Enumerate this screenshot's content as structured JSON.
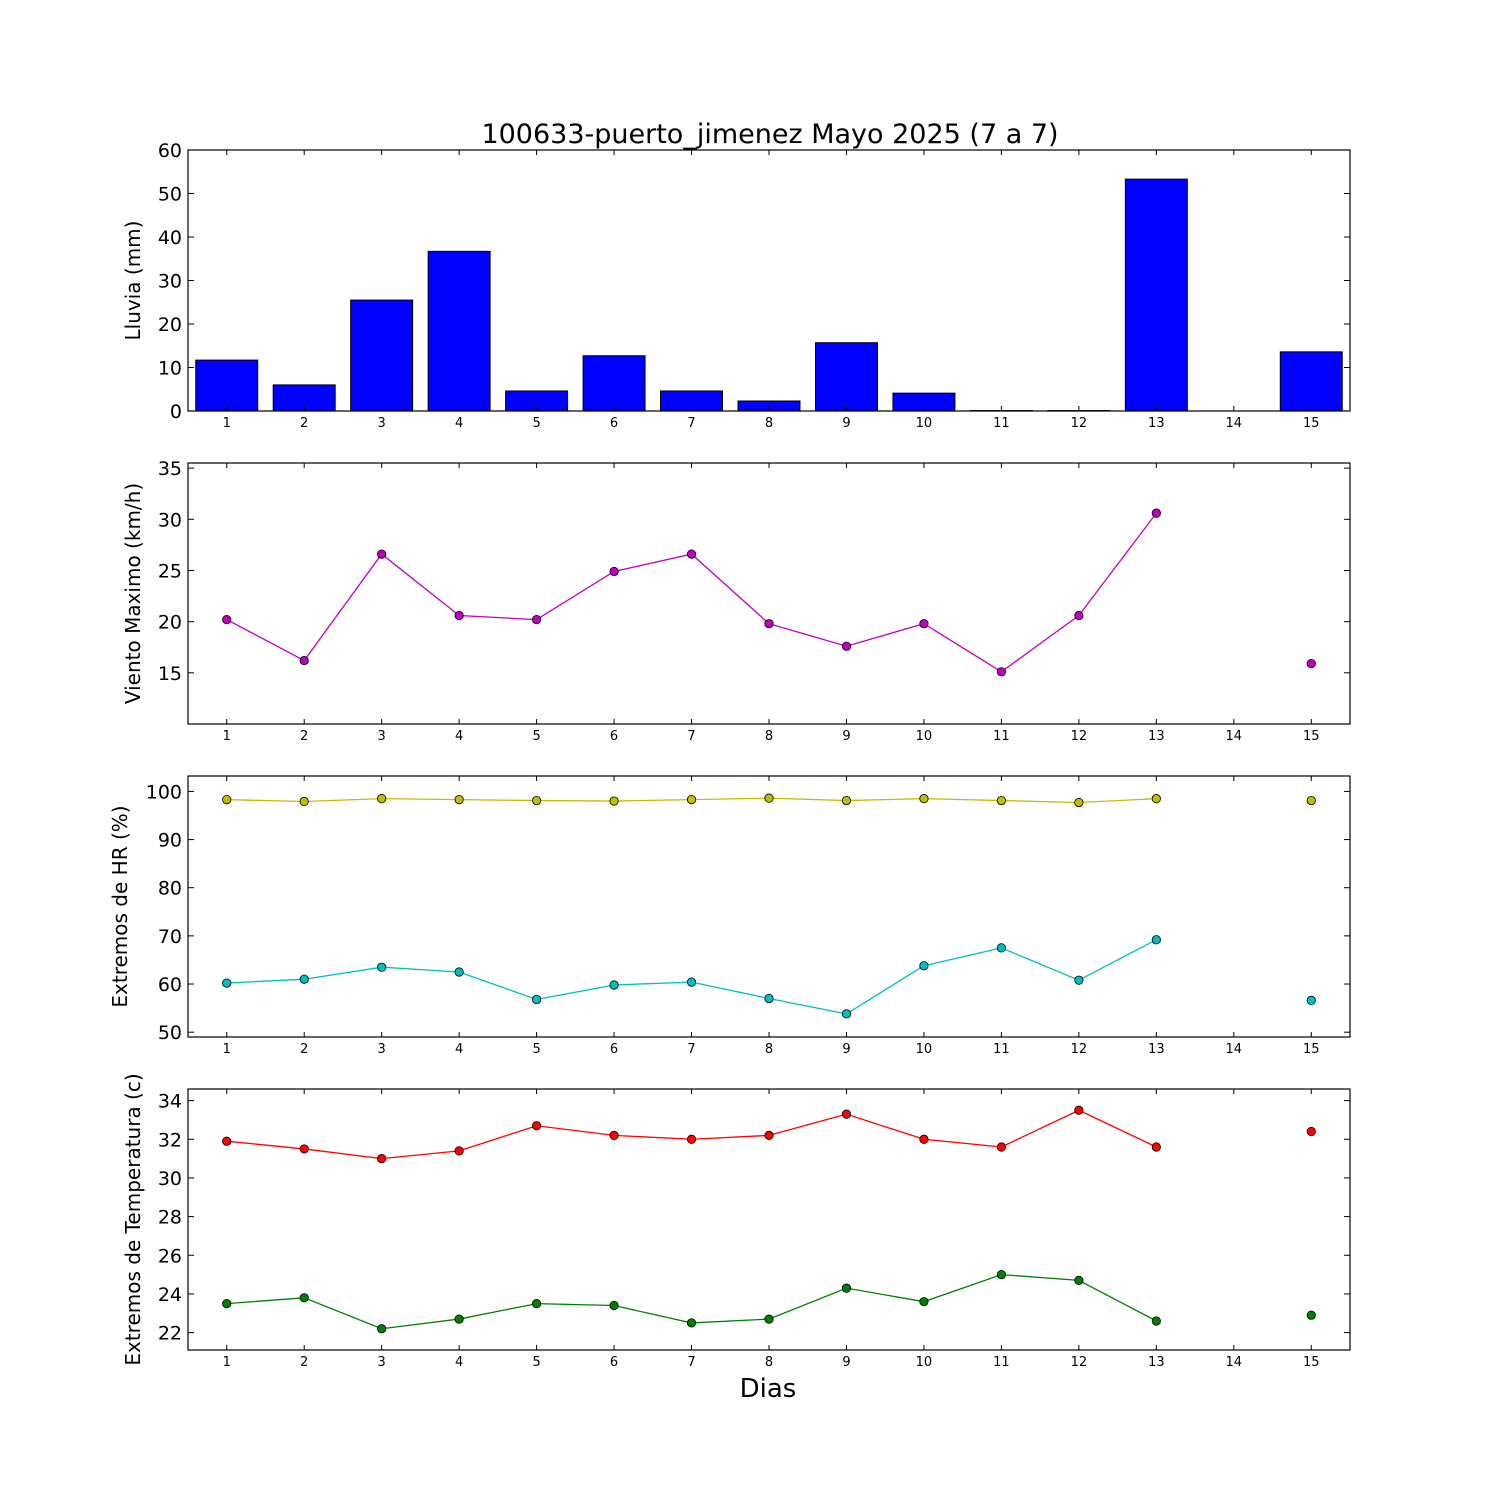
{
  "figure": {
    "title": "100633-puerto_jimenez Mayo 2025  (7 a 7)",
    "xlabel": "Dias"
  },
  "colors": {
    "rain": "#0000ff",
    "wind": "#bf00bf",
    "hr_max": "#bfbf00",
    "hr_min": "#00bfbf",
    "temp_max": "#ff0000",
    "temp_min": "#008000"
  },
  "chart_data": [
    {
      "id": "rain",
      "type": "bar",
      "ylabel": "Lluvia (mm)",
      "x": [
        1,
        2,
        3,
        4,
        5,
        6,
        7,
        8,
        9,
        10,
        11,
        12,
        13,
        14,
        15
      ],
      "xticks": [
        "1",
        "2",
        "3",
        "4",
        "5",
        "6",
        "7",
        "8",
        "9",
        "10",
        "11",
        "12",
        "13",
        "14",
        "15"
      ],
      "xlim": [
        0.5,
        15.5
      ],
      "ylim": [
        0,
        60
      ],
      "yticks": [
        0,
        10,
        20,
        30,
        40,
        50,
        60
      ],
      "series": [
        {
          "color": "#0000ff",
          "values": [
            11.7,
            6.0,
            25.5,
            36.7,
            4.6,
            12.7,
            4.6,
            2.3,
            15.7,
            4.1,
            0.1,
            0.1,
            53.3,
            null,
            13.6
          ]
        }
      ]
    },
    {
      "id": "wind",
      "type": "line",
      "ylabel": "Viento Maximo (km/h)",
      "x": [
        1,
        2,
        3,
        4,
        5,
        6,
        7,
        8,
        9,
        10,
        11,
        12,
        13,
        14,
        15
      ],
      "xticks": [
        "1",
        "2",
        "3",
        "4",
        "5",
        "6",
        "7",
        "8",
        "9",
        "10",
        "11",
        "12",
        "13",
        "14",
        "15"
      ],
      "xlim": [
        0.5,
        15.5
      ],
      "ylim": [
        10,
        35.5
      ],
      "yticks": [
        15,
        20,
        25,
        30,
        35
      ],
      "series": [
        {
          "color": "#bf00bf",
          "values": [
            20.2,
            16.2,
            26.6,
            20.6,
            20.2,
            24.9,
            26.6,
            19.8,
            17.6,
            19.8,
            15.1,
            20.6,
            30.6,
            null,
            15.9
          ]
        }
      ]
    },
    {
      "id": "hr",
      "type": "line",
      "ylabel": "Extremos de HR (%)",
      "x": [
        1,
        2,
        3,
        4,
        5,
        6,
        7,
        8,
        9,
        10,
        11,
        12,
        13,
        14,
        15
      ],
      "xticks": [
        "1",
        "2",
        "3",
        "4",
        "5",
        "6",
        "7",
        "8",
        "9",
        "10",
        "11",
        "12",
        "13",
        "14",
        "15"
      ],
      "xlim": [
        0.5,
        15.5
      ],
      "ylim": [
        49,
        103.2
      ],
      "yticks": [
        50,
        60,
        70,
        80,
        90,
        100
      ],
      "series": [
        {
          "color": "#bfbf00",
          "values": [
            98.3,
            97.9,
            98.5,
            98.3,
            98.1,
            98.0,
            98.3,
            98.6,
            98.1,
            98.5,
            98.1,
            97.7,
            98.5,
            null,
            98.1
          ]
        },
        {
          "color": "#00bfbf",
          "values": [
            60.2,
            61.0,
            63.5,
            62.5,
            56.8,
            59.8,
            60.4,
            57.0,
            53.8,
            63.8,
            67.5,
            60.8,
            69.2,
            null,
            56.6
          ]
        }
      ]
    },
    {
      "id": "temp",
      "type": "line",
      "ylabel": "Extremos de Temperatura (c)",
      "x": [
        1,
        2,
        3,
        4,
        5,
        6,
        7,
        8,
        9,
        10,
        11,
        12,
        13,
        14,
        15
      ],
      "xticks": [
        "1",
        "2",
        "3",
        "4",
        "5",
        "6",
        "7",
        "8",
        "9",
        "10",
        "11",
        "12",
        "13",
        "14",
        "15"
      ],
      "xlim": [
        0.5,
        15.5
      ],
      "ylim": [
        21.1,
        34.6
      ],
      "yticks": [
        22,
        24,
        26,
        28,
        30,
        32,
        34
      ],
      "series": [
        {
          "color": "#ff0000",
          "values": [
            31.9,
            31.5,
            31.0,
            31.4,
            32.7,
            32.2,
            32.0,
            32.2,
            33.3,
            32.0,
            31.6,
            33.5,
            31.6,
            null,
            32.4
          ]
        },
        {
          "color": "#008000",
          "values": [
            23.5,
            23.8,
            22.2,
            22.7,
            23.5,
            23.4,
            22.5,
            22.7,
            24.3,
            23.6,
            25.0,
            24.7,
            22.6,
            null,
            22.9
          ]
        }
      ]
    }
  ]
}
